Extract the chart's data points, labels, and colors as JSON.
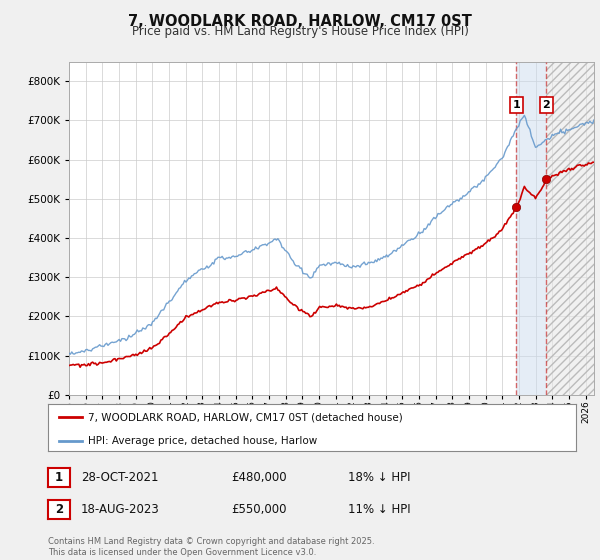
{
  "title": "7, WOODLARK ROAD, HARLOW, CM17 0ST",
  "subtitle": "Price paid vs. HM Land Registry's House Price Index (HPI)",
  "red_label": "7, WOODLARK ROAD, HARLOW, CM17 0ST (detached house)",
  "blue_label": "HPI: Average price, detached house, Harlow",
  "sale1_date": "28-OCT-2021",
  "sale1_price": "£480,000",
  "sale1_hpi": "18% ↓ HPI",
  "sale2_date": "18-AUG-2023",
  "sale2_price": "£550,000",
  "sale2_hpi": "11% ↓ HPI",
  "footer": "Contains HM Land Registry data © Crown copyright and database right 2025.\nThis data is licensed under the Open Government Licence v3.0.",
  "background_color": "#f0f0f0",
  "plot_bg_color": "#ffffff",
  "red_color": "#cc0000",
  "blue_color": "#6699cc",
  "sale1_year": 2021.83,
  "sale2_year": 2023.63,
  "sale1_value": 480000,
  "sale2_value": 550000,
  "xmin": 1995,
  "xmax": 2026.5,
  "ymin": 0,
  "ymax": 850000
}
